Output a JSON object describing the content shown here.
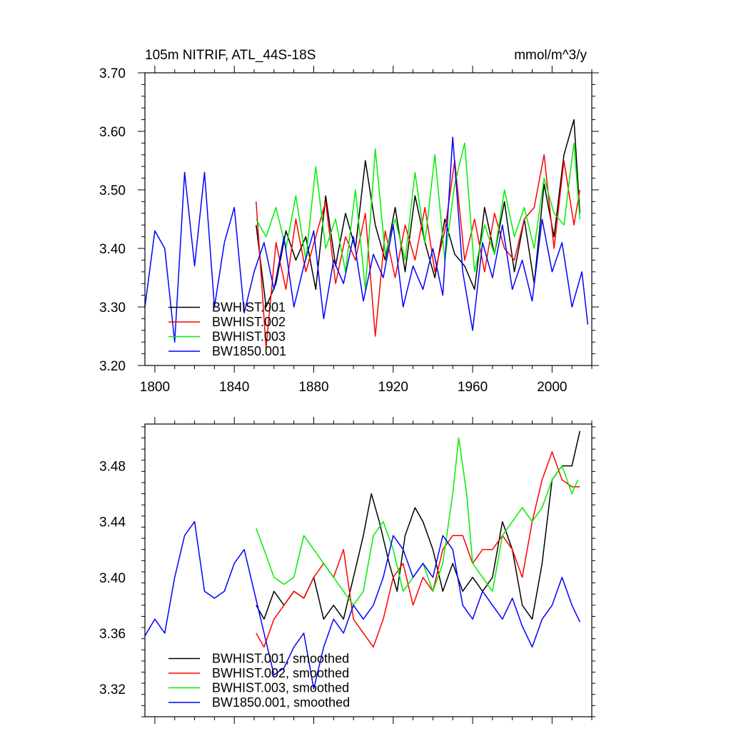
{
  "chart_data": [
    {
      "type": "line",
      "title": "105m NITRIF, ATL_44S-18S",
      "units": "mmol/m^3/y",
      "xlim": [
        1795,
        2020
      ],
      "ylim": [
        3.2,
        3.7
      ],
      "x_ticks": [
        1800,
        1840,
        1880,
        1920,
        1960,
        2000
      ],
      "x_tick_labels": [
        "1800",
        "1840",
        "1880",
        "1920",
        "1960",
        "2000"
      ],
      "y_ticks": [
        3.2,
        3.3,
        3.4,
        3.5,
        3.6,
        3.7
      ],
      "y_tick_labels": [
        "3.20",
        "3.30",
        "3.40",
        "3.50",
        "3.60",
        "3.70"
      ],
      "legend_placement": "bottom-left",
      "series": [
        {
          "name": "BWHIST.001",
          "color": "#000000",
          "x": [
            1851,
            1856,
            1861,
            1866,
            1871,
            1876,
            1881,
            1886,
            1891,
            1896,
            1901,
            1906,
            1911,
            1916,
            1921,
            1926,
            1931,
            1936,
            1941,
            1946,
            1951,
            1956,
            1961,
            1966,
            1971,
            1976,
            1981,
            1986,
            1991,
            1996,
            2001,
            2006,
            2011,
            2014
          ],
          "y": [
            3.44,
            3.3,
            3.34,
            3.43,
            3.38,
            3.42,
            3.33,
            3.49,
            3.37,
            3.46,
            3.4,
            3.55,
            3.44,
            3.38,
            3.47,
            3.36,
            3.49,
            3.41,
            3.35,
            3.45,
            3.39,
            3.37,
            3.33,
            3.47,
            3.39,
            3.48,
            3.36,
            3.45,
            3.34,
            3.51,
            3.42,
            3.56,
            3.62,
            3.46
          ]
        },
        {
          "name": "BWHIST.002",
          "color": "#ff0000",
          "x": [
            1851,
            1856,
            1861,
            1866,
            1871,
            1876,
            1881,
            1886,
            1891,
            1896,
            1901,
            1906,
            1911,
            1916,
            1921,
            1926,
            1931,
            1936,
            1941,
            1946,
            1951,
            1956,
            1961,
            1966,
            1971,
            1976,
            1981,
            1986,
            1991,
            1996,
            2001,
            2006,
            2011,
            2014
          ],
          "y": [
            3.48,
            3.23,
            3.41,
            3.33,
            3.45,
            3.36,
            3.42,
            3.48,
            3.34,
            3.42,
            3.38,
            3.46,
            3.25,
            3.43,
            3.35,
            3.44,
            3.38,
            3.47,
            3.36,
            3.43,
            3.55,
            3.38,
            3.45,
            3.36,
            3.46,
            3.4,
            3.38,
            3.45,
            3.47,
            3.56,
            3.4,
            3.55,
            3.44,
            3.5
          ]
        },
        {
          "name": "BWHIST.003",
          "color": "#00ee00",
          "x": [
            1851,
            1856,
            1861,
            1866,
            1871,
            1876,
            1881,
            1886,
            1891,
            1896,
            1901,
            1906,
            1911,
            1916,
            1921,
            1926,
            1931,
            1936,
            1941,
            1946,
            1951,
            1956,
            1961,
            1966,
            1971,
            1976,
            1981,
            1986,
            1991,
            1996,
            2001,
            2006,
            2011,
            2014
          ],
          "y": [
            3.45,
            3.42,
            3.47,
            3.4,
            3.49,
            3.38,
            3.54,
            3.4,
            3.45,
            3.36,
            3.5,
            3.33,
            3.57,
            3.39,
            3.45,
            3.38,
            3.53,
            3.41,
            3.56,
            3.38,
            3.51,
            3.58,
            3.36,
            3.44,
            3.39,
            3.5,
            3.42,
            3.47,
            3.4,
            3.52,
            3.46,
            3.44,
            3.58,
            3.45
          ]
        },
        {
          "name": "BW1850.001",
          "color": "#0000ff",
          "x": [
            1795,
            1800,
            1805,
            1810,
            1815,
            1820,
            1825,
            1830,
            1835,
            1840,
            1845,
            1850,
            1855,
            1860,
            1865,
            1870,
            1875,
            1880,
            1885,
            1890,
            1895,
            1900,
            1905,
            1910,
            1915,
            1920,
            1925,
            1930,
            1935,
            1940,
            1945,
            1950,
            1955,
            1960,
            1965,
            1970,
            1975,
            1980,
            1985,
            1990,
            1995,
            2000,
            2005,
            2010,
            2015,
            2018
          ],
          "y": [
            3.3,
            3.43,
            3.4,
            3.24,
            3.53,
            3.37,
            3.53,
            3.3,
            3.41,
            3.47,
            3.29,
            3.36,
            3.41,
            3.33,
            3.42,
            3.3,
            3.37,
            3.43,
            3.28,
            3.38,
            3.34,
            3.42,
            3.31,
            3.39,
            3.35,
            3.44,
            3.3,
            3.37,
            3.33,
            3.4,
            3.32,
            3.59,
            3.36,
            3.26,
            3.41,
            3.35,
            3.44,
            3.33,
            3.38,
            3.31,
            3.45,
            3.36,
            3.41,
            3.3,
            3.36,
            3.27
          ]
        }
      ]
    },
    {
      "type": "line",
      "xlim": [
        1795,
        2020
      ],
      "ylim": [
        3.3,
        3.51
      ],
      "x_ticks": [
        1800,
        1840,
        1880,
        1920,
        1960,
        2000
      ],
      "y_ticks": [
        3.32,
        3.36,
        3.4,
        3.44,
        3.48
      ],
      "y_tick_labels": [
        "3.32",
        "3.36",
        "3.40",
        "3.44",
        "3.48"
      ],
      "legend_placement": "bottom-left",
      "series": [
        {
          "name": "BWHIST.001, smoothed",
          "color": "#000000",
          "x": [
            1851,
            1855,
            1860,
            1865,
            1870,
            1875,
            1880,
            1885,
            1890,
            1895,
            1900,
            1905,
            1909,
            1913,
            1918,
            1922,
            1926,
            1931,
            1935,
            1940,
            1945,
            1950,
            1955,
            1960,
            1965,
            1970,
            1975,
            1980,
            1985,
            1990,
            1995,
            2000,
            2005,
            2010,
            2014
          ],
          "y": [
            3.38,
            3.37,
            3.39,
            3.38,
            3.39,
            3.385,
            3.4,
            3.37,
            3.38,
            3.37,
            3.4,
            3.43,
            3.46,
            3.44,
            3.41,
            3.39,
            3.43,
            3.45,
            3.44,
            3.42,
            3.39,
            3.41,
            3.39,
            3.4,
            3.39,
            3.4,
            3.44,
            3.42,
            3.38,
            3.37,
            3.41,
            3.47,
            3.48,
            3.48,
            3.505
          ]
        },
        {
          "name": "BWHIST.002, smoothed",
          "color": "#ff0000",
          "x": [
            1851,
            1855,
            1860,
            1865,
            1870,
            1875,
            1880,
            1885,
            1890,
            1895,
            1900,
            1905,
            1910,
            1915,
            1920,
            1925,
            1930,
            1935,
            1940,
            1945,
            1950,
            1955,
            1960,
            1965,
            1970,
            1975,
            1980,
            1985,
            1990,
            1995,
            2000,
            2005,
            2010,
            2014
          ],
          "y": [
            3.36,
            3.35,
            3.37,
            3.38,
            3.39,
            3.385,
            3.4,
            3.41,
            3.4,
            3.42,
            3.37,
            3.36,
            3.35,
            3.37,
            3.4,
            3.41,
            3.38,
            3.4,
            3.39,
            3.42,
            3.43,
            3.43,
            3.41,
            3.42,
            3.42,
            3.43,
            3.42,
            3.4,
            3.44,
            3.47,
            3.49,
            3.47,
            3.465,
            3.465
          ]
        },
        {
          "name": "BWHIST.003, smoothed",
          "color": "#00ee00",
          "x": [
            1851,
            1855,
            1860,
            1865,
            1870,
            1875,
            1880,
            1885,
            1890,
            1895,
            1900,
            1905,
            1910,
            1915,
            1920,
            1925,
            1930,
            1935,
            1940,
            1945,
            1950,
            1953,
            1957,
            1960,
            1965,
            1970,
            1975,
            1980,
            1985,
            1990,
            1995,
            2000,
            2005,
            2010,
            2013
          ],
          "y": [
            3.435,
            3.42,
            3.4,
            3.395,
            3.4,
            3.43,
            3.42,
            3.41,
            3.4,
            3.39,
            3.38,
            3.39,
            3.43,
            3.44,
            3.42,
            3.39,
            3.4,
            3.41,
            3.39,
            3.41,
            3.46,
            3.5,
            3.46,
            3.41,
            3.4,
            3.39,
            3.43,
            3.44,
            3.45,
            3.44,
            3.45,
            3.47,
            3.48,
            3.46,
            3.47
          ]
        },
        {
          "name": "BW1850.001, smoothed",
          "color": "#0000ff",
          "x": [
            1795,
            1800,
            1805,
            1810,
            1815,
            1820,
            1825,
            1830,
            1835,
            1840,
            1845,
            1850,
            1855,
            1860,
            1865,
            1870,
            1875,
            1880,
            1885,
            1890,
            1895,
            1900,
            1905,
            1910,
            1915,
            1920,
            1925,
            1930,
            1935,
            1940,
            1945,
            1950,
            1955,
            1960,
            1965,
            1970,
            1975,
            1980,
            1985,
            1990,
            1995,
            2000,
            2005,
            2010,
            2014
          ],
          "y": [
            3.358,
            3.37,
            3.36,
            3.4,
            3.43,
            3.44,
            3.39,
            3.385,
            3.39,
            3.41,
            3.42,
            3.39,
            3.36,
            3.33,
            3.335,
            3.35,
            3.36,
            3.32,
            3.35,
            3.37,
            3.36,
            3.38,
            3.37,
            3.38,
            3.4,
            3.43,
            3.42,
            3.4,
            3.41,
            3.4,
            3.43,
            3.42,
            3.38,
            3.37,
            3.39,
            3.38,
            3.37,
            3.385,
            3.365,
            3.35,
            3.37,
            3.38,
            3.4,
            3.38,
            3.368
          ]
        }
      ]
    }
  ]
}
